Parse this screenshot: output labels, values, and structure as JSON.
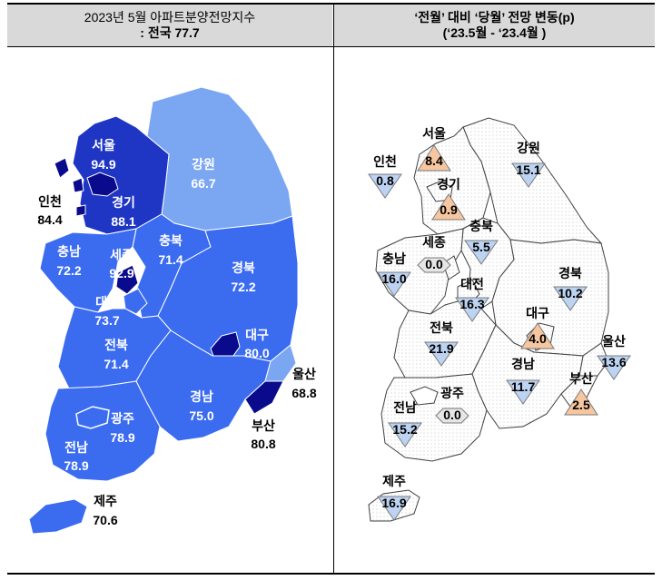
{
  "header": {
    "left_title": "2023년  5월 아파트분양전망지수",
    "left_sub": ": 전국 77.7",
    "right_title": "‘전월’ 대비 ‘당월’ 전망 변동(p)",
    "right_sub": "(‘23.5월  -  ‘23.4월  )"
  },
  "colors": {
    "very_high": "#0a0a8c",
    "high": "#1f36c4",
    "mid": "#3b6cf0",
    "low": "#7aa6f2",
    "up_triangle": "#f6c6a0",
    "down_triangle": "#bcd3f2",
    "zero_triangle": "#e6e6e6"
  },
  "index_map": [
    {
      "region": "서울",
      "value": "94.9"
    },
    {
      "region": "인천",
      "value": "84.4"
    },
    {
      "region": "경기",
      "value": "88.1"
    },
    {
      "region": "강원",
      "value": "66.7"
    },
    {
      "region": "충남",
      "value": "72.2"
    },
    {
      "region": "세종",
      "value": "92.9"
    },
    {
      "region": "충북",
      "value": "71.4"
    },
    {
      "region": "경북",
      "value": "72.2"
    },
    {
      "region": "대전",
      "value": "73.7"
    },
    {
      "region": "대구",
      "value": "80.0"
    },
    {
      "region": "전북",
      "value": "71.4"
    },
    {
      "region": "울산",
      "value": "68.8"
    },
    {
      "region": "경남",
      "value": "75.0"
    },
    {
      "region": "광주",
      "value": "78.9"
    },
    {
      "region": "부산",
      "value": "80.8"
    },
    {
      "region": "전남",
      "value": "78.9"
    },
    {
      "region": "제주",
      "value": "70.6"
    }
  ],
  "change_map": [
    {
      "region": "서울",
      "value": "8.4",
      "direction": "up"
    },
    {
      "region": "인천",
      "value": "0.8",
      "direction": "down"
    },
    {
      "region": "강원",
      "value": "15.1",
      "direction": "down"
    },
    {
      "region": "경기",
      "value": "0.9",
      "direction": "up"
    },
    {
      "region": "충북",
      "value": "5.5",
      "direction": "down"
    },
    {
      "region": "세종",
      "value": "0.0",
      "direction": "zero"
    },
    {
      "region": "충남",
      "value": "16.0",
      "direction": "down"
    },
    {
      "region": "경북",
      "value": "10.2",
      "direction": "down"
    },
    {
      "region": "대전",
      "value": "16.3",
      "direction": "down"
    },
    {
      "region": "대구",
      "value": "4.0",
      "direction": "up"
    },
    {
      "region": "전북",
      "value": "21.9",
      "direction": "down"
    },
    {
      "region": "울산",
      "value": "13.6",
      "direction": "down"
    },
    {
      "region": "경남",
      "value": "11.7",
      "direction": "down"
    },
    {
      "region": "부산",
      "value": "2.5",
      "direction": "up"
    },
    {
      "region": "광주",
      "value": "0.0",
      "direction": "zero"
    },
    {
      "region": "전남",
      "value": "15.2",
      "direction": "down"
    },
    {
      "region": "제주",
      "value": "16.9",
      "direction": "down"
    }
  ]
}
